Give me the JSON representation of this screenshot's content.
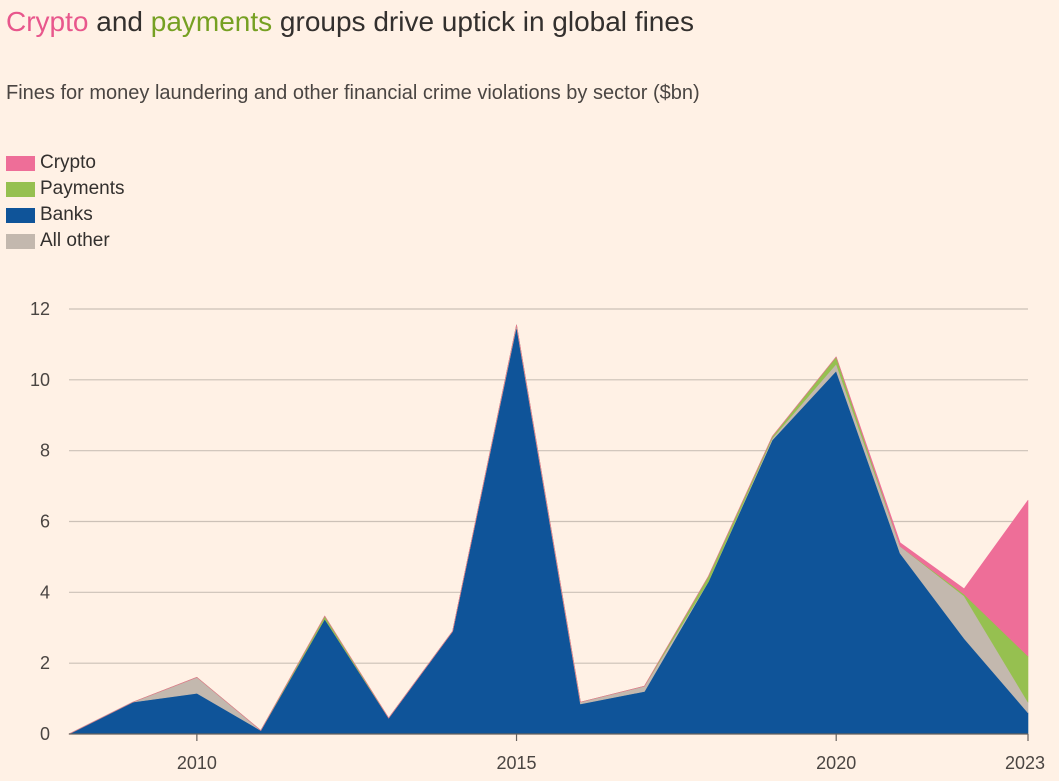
{
  "header": {
    "title_parts": [
      {
        "text": "Crypto",
        "color": "#e8578c"
      },
      {
        "text": " and ",
        "color": "#33302e"
      },
      {
        "text": "payments",
        "color": "#76a022"
      },
      {
        "text": " groups drive uptick in global fines",
        "color": "#33302e"
      }
    ],
    "subtitle": "Fines for money laundering and other financial crime violations by sector ($bn)"
  },
  "colors": {
    "background": "#fff1e5",
    "grid": "#ccc1b7",
    "axis": "#66605c"
  },
  "chart_data": {
    "type": "area",
    "stacked": true,
    "title": "Crypto and payments groups drive uptick in global fines",
    "subtitle": "Fines for money laundering and other financial crime violations by sector ($bn)",
    "xlabel": "",
    "ylabel": "",
    "x": [
      2008,
      2009,
      2010,
      2011,
      2012,
      2013,
      2014,
      2015,
      2016,
      2017,
      2018,
      2019,
      2020,
      2021,
      2022,
      2023
    ],
    "xlim": [
      2008,
      2023
    ],
    "ylim": [
      0,
      12
    ],
    "x_ticks": [
      2010,
      2015,
      2020,
      2023
    ],
    "y_ticks": [
      0,
      2,
      4,
      6,
      8,
      10,
      12
    ],
    "grid": true,
    "legend_position": "top-left",
    "series": [
      {
        "name": "Banks",
        "color": "#0f5499",
        "values": [
          0.0,
          0.9,
          1.15,
          0.1,
          3.25,
          0.45,
          2.9,
          11.5,
          0.85,
          1.2,
          4.3,
          8.3,
          10.25,
          5.1,
          2.7,
          0.6
        ]
      },
      {
        "name": "All other",
        "color": "#c3b8ae",
        "values": [
          0.0,
          0.0,
          0.45,
          0.0,
          0.0,
          0.0,
          0.0,
          0.05,
          0.05,
          0.15,
          0.0,
          0.05,
          0.2,
          0.2,
          1.2,
          0.3
        ]
      },
      {
        "name": "Payments",
        "color": "#96c050",
        "values": [
          0.0,
          0.0,
          0.0,
          0.0,
          0.08,
          0.0,
          0.0,
          0.0,
          0.0,
          0.0,
          0.15,
          0.05,
          0.2,
          0.0,
          0.05,
          1.3
        ]
      },
      {
        "name": "Crypto",
        "color": "#ee6e98",
        "values": [
          0.0,
          0.0,
          0.0,
          0.0,
          0.0,
          0.0,
          0.0,
          0.0,
          0.0,
          0.0,
          0.0,
          0.0,
          0.0,
          0.1,
          0.15,
          4.4
        ]
      }
    ],
    "legend": [
      "Crypto",
      "Payments",
      "Banks",
      "All other"
    ]
  }
}
